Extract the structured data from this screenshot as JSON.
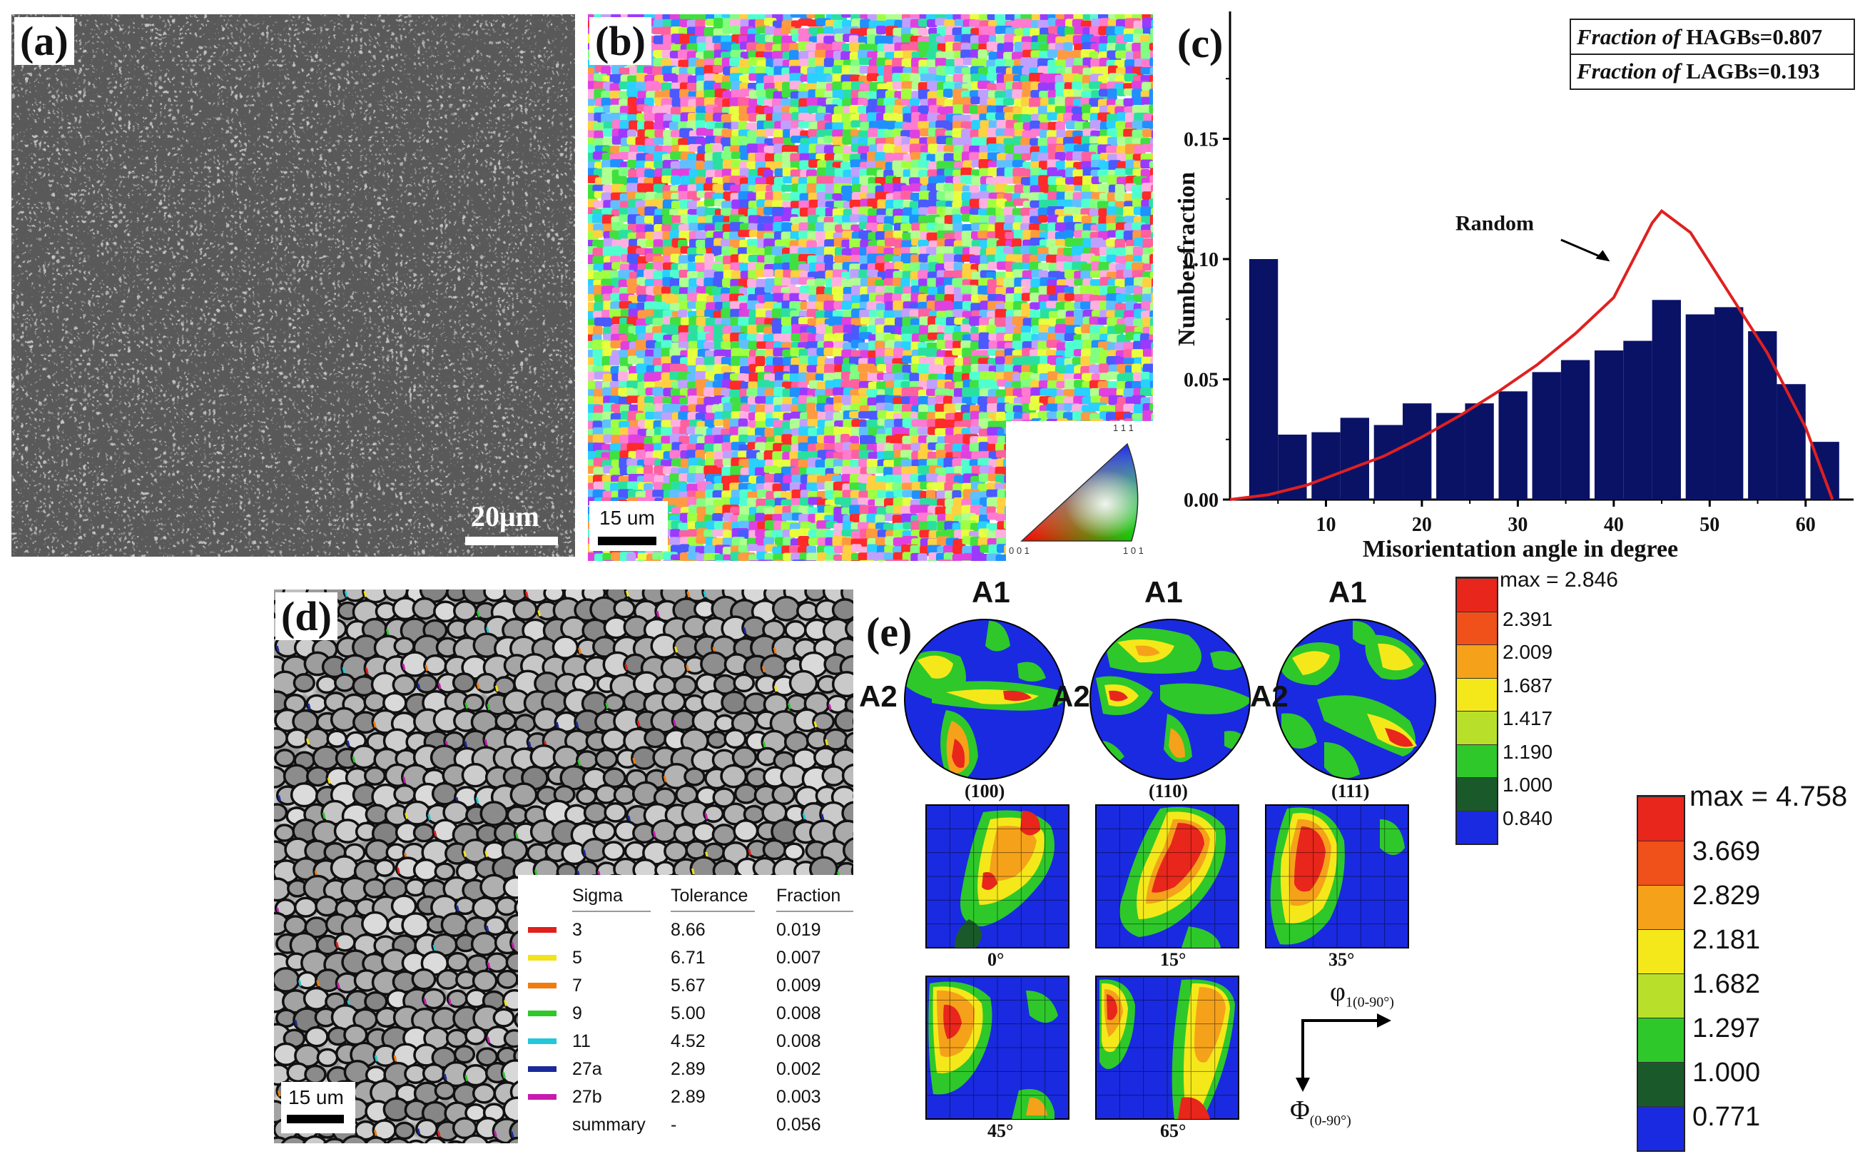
{
  "panels": {
    "a": {
      "label": "(a)",
      "scalebar": "20μm"
    },
    "b": {
      "label": "(b)",
      "scalebar": "15 um",
      "ipf_corners": {
        "top": "1 1 1",
        "left": "0 0 1",
        "right": "1 0 1"
      }
    },
    "d": {
      "label": "(d)",
      "scalebar": "15 um",
      "table": {
        "headers": [
          "Sigma",
          "Tolerance",
          "Fraction"
        ],
        "rows": [
          {
            "sigma": "3",
            "tolerance": "8.66",
            "fraction": "0.019",
            "color": "#e0201a"
          },
          {
            "sigma": "5",
            "tolerance": "6.71",
            "fraction": "0.007",
            "color": "#f4e21a"
          },
          {
            "sigma": "7",
            "tolerance": "5.67",
            "fraction": "0.009",
            "color": "#f07c10"
          },
          {
            "sigma": "9",
            "tolerance": "5.00",
            "fraction": "0.008",
            "color": "#2ec82a"
          },
          {
            "sigma": "11",
            "tolerance": "4.52",
            "fraction": "0.008",
            "color": "#22c8d8"
          },
          {
            "sigma": "27a",
            "tolerance": "2.89",
            "fraction": "0.002",
            "color": "#1a2a9a"
          },
          {
            "sigma": "27b",
            "tolerance": "2.89",
            "fraction": "0.003",
            "color": "#c81ab0"
          },
          {
            "sigma": "summary",
            "tolerance": "-",
            "fraction": "0.056",
            "color": ""
          }
        ]
      }
    },
    "e": {
      "label": "(e)",
      "axis_label": "A1",
      "side_label": "A2",
      "pole_figures": [
        "(100)",
        "(110)",
        "(111)"
      ],
      "odf_sections": [
        "0°",
        "15°",
        "35°",
        "45°",
        "65°"
      ],
      "phi1_label": "φ",
      "phi1_sub": "1(0-90°)",
      "Phi_label": "Φ",
      "Phi_sub": "(0-90°)"
    }
  },
  "colorbar_pf": {
    "max_label": "max = 2.846",
    "levels": [
      "2.391",
      "2.009",
      "1.687",
      "1.417",
      "1.190",
      "1.000",
      "0.840"
    ],
    "colors": [
      "#e8261c",
      "#f0501a",
      "#f5a21a",
      "#f5e81a",
      "#b8e02a",
      "#2ec82a",
      "#1a5a2a",
      "#1a2ae0"
    ]
  },
  "colorbar_odf": {
    "max_label": "max = 4.758",
    "levels": [
      "3.669",
      "2.829",
      "2.181",
      "1.682",
      "1.297",
      "1.000",
      "0.771"
    ],
    "colors": [
      "#e8261c",
      "#f0501a",
      "#f5a21a",
      "#f5e81a",
      "#b8e02a",
      "#2ec82a",
      "#1a5a2a",
      "#1a2ae0"
    ]
  },
  "chart_data": {
    "type": "bar",
    "label": "(c)",
    "xlabel": "Misorientation angle in degree",
    "ylabel": "Number fraction",
    "xlim": [
      0,
      65
    ],
    "ylim": [
      0,
      0.2
    ],
    "xticks": [
      10,
      20,
      30,
      40,
      50,
      60
    ],
    "yticks": [
      "0.00",
      "0.05",
      "0.10",
      "0.15"
    ],
    "x": [
      3.5,
      6.5,
      10,
      13,
      16.5,
      19.5,
      23,
      26,
      29.5,
      33,
      36,
      39.5,
      42.5,
      45.5,
      49,
      52,
      55.5,
      58.5,
      62
    ],
    "values": [
      0.1,
      0.027,
      0.028,
      0.034,
      0.031,
      0.04,
      0.036,
      0.04,
      0.045,
      0.053,
      0.058,
      0.062,
      0.066,
      0.083,
      0.077,
      0.08,
      0.07,
      0.048,
      0.024
    ],
    "bar_color": "#0a1266",
    "random_curve": {
      "name": "Random",
      "color": "#e02020",
      "x": [
        0,
        4,
        8,
        12,
        16,
        20,
        24,
        28,
        32,
        36,
        40,
        44,
        45,
        48,
        52,
        56,
        60,
        62.8
      ],
      "y": [
        0.0,
        0.002,
        0.006,
        0.012,
        0.018,
        0.026,
        0.035,
        0.045,
        0.056,
        0.069,
        0.084,
        0.115,
        0.12,
        0.111,
        0.086,
        0.061,
        0.03,
        0.0
      ]
    },
    "annotations": [
      {
        "prefix": "Fraction of ",
        "text": "HAGBs=0.807"
      },
      {
        "prefix": "Fraction of ",
        "text": "LAGBs=0.193"
      }
    ],
    "curve_label": "Random"
  }
}
